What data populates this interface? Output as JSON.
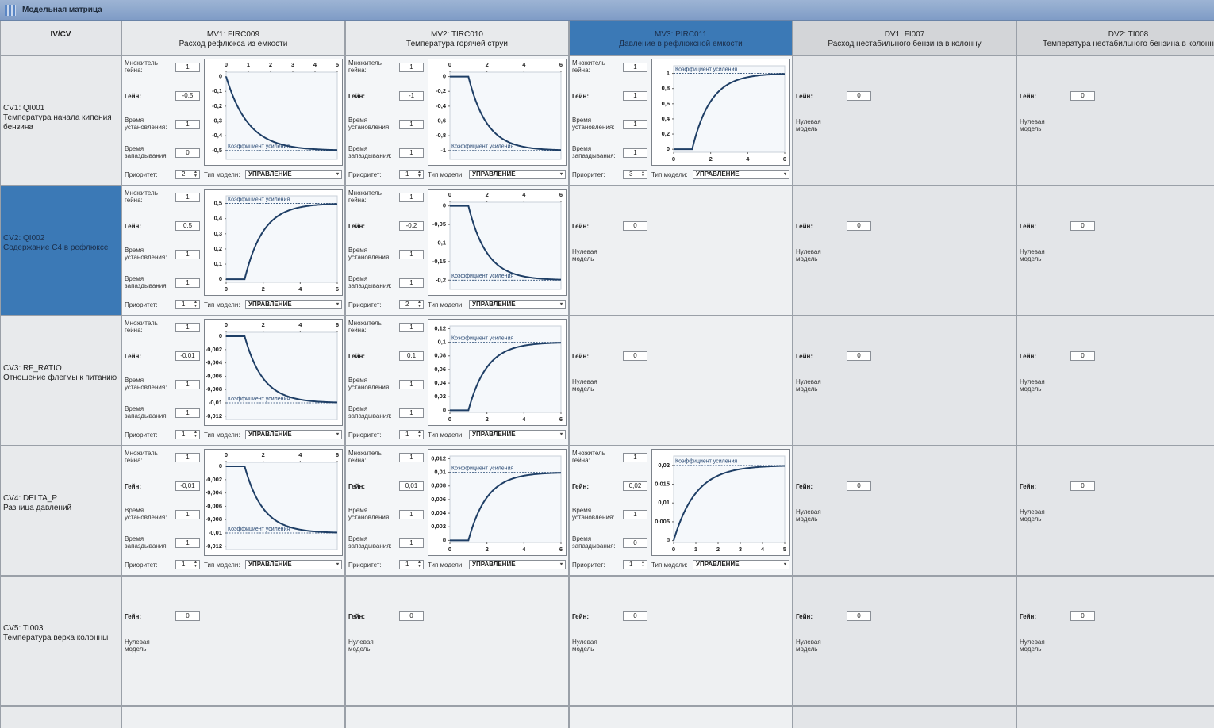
{
  "header": {
    "title": "Модельная матрица"
  },
  "labels": {
    "corner": "IV/CV",
    "multiplier": "Множитель гейна:",
    "gain": "Гейн:",
    "settle": "Время установления:",
    "delay": "Время запаздывания:",
    "priority": "Приоритет:",
    "model_type": "Тип модели:",
    "zero_model": "Нулевая модель",
    "gain_coef": "Коэффициент усиления"
  },
  "columns": [
    {
      "name": "MV1: FIRC009",
      "description": "Расход рефлюкса из емкости"
    },
    {
      "name": "MV2: TIRC010",
      "description": "Температура горячей струи"
    },
    {
      "name": "MV3: PIRC011",
      "description": "Давление в рефлюксной емкости",
      "selected": true
    },
    {
      "name": "DV1: FI007",
      "description": "Расход нестабильного бензина в колонну"
    },
    {
      "name": "DV2: TI008",
      "description": "Температура нестабильного бензина в колонн"
    }
  ],
  "rows": [
    {
      "name": "CV1: QI001",
      "description": "Температура начала кипения бензина",
      "cells": [
        {
          "multiplier": 1,
          "gain": {
            "value": -0.5,
            "label": "-0,5"
          },
          "settle_time": 1,
          "delay": 0,
          "priority": 2,
          "model_type": "УПРАВЛЕНИЕ",
          "chart": {
            "type": "line",
            "xaxis": "top",
            "xlim": [
              0,
              5
            ],
            "xticks": [
              0,
              1,
              2,
              3,
              4,
              5
            ],
            "ylim": [
              -0.56,
              0.03
            ],
            "yticks": [
              0,
              {
                "value": -0.1,
                "label": "-0,1"
              },
              {
                "value": -0.2,
                "label": "-0,2"
              },
              {
                "value": -0.3,
                "label": "-0,3"
              },
              {
                "value": -0.4,
                "label": "-0,4"
              },
              {
                "value": -0.5,
                "label": "-0,5"
              }
            ]
          }
        },
        {
          "multiplier": 1,
          "gain": -1,
          "settle_time": 1,
          "delay": 1,
          "priority": 1,
          "model_type": "УПРАВЛЕНИЕ",
          "chart": {
            "type": "line",
            "xaxis": "top",
            "xlim": [
              0,
              6
            ],
            "xticks": [
              0,
              2,
              4,
              6
            ],
            "ylim": [
              -1.12,
              0.06
            ],
            "yticks": [
              0,
              {
                "value": -0.2,
                "label": "-0,2"
              },
              {
                "value": -0.4,
                "label": "-0,4"
              },
              {
                "value": -0.6,
                "label": "-0,6"
              },
              {
                "value": -0.8,
                "label": "-0,8"
              },
              -1
            ]
          }
        },
        {
          "multiplier": 1,
          "gain": 1,
          "settle_time": 1,
          "delay": 1,
          "priority": 3,
          "model_type": "УПРАВЛЕНИЕ",
          "chart": {
            "type": "line",
            "xaxis": "bottom",
            "xlim": [
              0,
              6
            ],
            "xticks": [
              0,
              2,
              4,
              6
            ],
            "ylim": [
              -0.04,
              1.1
            ],
            "yticks": [
              0,
              {
                "value": 0.2,
                "label": "0,2"
              },
              {
                "value": 0.4,
                "label": "0,4"
              },
              {
                "value": 0.6,
                "label": "0,6"
              },
              {
                "value": 0.8,
                "label": "0,8"
              },
              1
            ]
          }
        },
        {
          "gain": 0
        },
        {
          "gain": 0
        }
      ]
    },
    {
      "name": "CV2: QI002",
      "description": "Содержание С4 в рефлюксе",
      "selected": true,
      "cells": [
        {
          "multiplier": 1,
          "gain": {
            "value": 0.5,
            "label": "0,5"
          },
          "settle_time": 1,
          "delay": 1,
          "priority": 1,
          "model_type": "УПРАВЛЕНИЕ",
          "chart": {
            "type": "line",
            "xaxis": "bottom",
            "xlim": [
              0,
              6
            ],
            "xticks": [
              0,
              2,
              4,
              6
            ],
            "ylim": [
              -0.02,
              0.55
            ],
            "yticks": [
              0,
              {
                "value": 0.1,
                "label": "0,1"
              },
              {
                "value": 0.2,
                "label": "0,2"
              },
              {
                "value": 0.3,
                "label": "0,3"
              },
              {
                "value": 0.4,
                "label": "0,4"
              },
              {
                "value": 0.5,
                "label": "0,5"
              }
            ]
          }
        },
        {
          "multiplier": 1,
          "gain": {
            "value": -0.2,
            "label": "-0,2"
          },
          "settle_time": 1,
          "delay": 1,
          "priority": 2,
          "model_type": "УПРАВЛЕНИЕ",
          "chart": {
            "type": "line",
            "xaxis": "top",
            "xlim": [
              0,
              6
            ],
            "xticks": [
              0,
              2,
              4,
              6
            ],
            "ylim": [
              -0.225,
              0.01
            ],
            "yticks": [
              0,
              {
                "value": -0.05,
                "label": "-0,05"
              },
              {
                "value": -0.1,
                "label": "-0,1"
              },
              {
                "value": -0.15,
                "label": "-0,15"
              },
              {
                "value": -0.2,
                "label": "-0,2"
              }
            ]
          }
        },
        {
          "gain": 0
        },
        {
          "gain": 0
        },
        {
          "gain": 0
        }
      ]
    },
    {
      "name": "CV3: RF_RATIO",
      "description": "Отношение флегмы к питанию",
      "cells": [
        {
          "multiplier": 1,
          "gain": {
            "value": -0.01,
            "label": "-0,01"
          },
          "settle_time": 1,
          "delay": 1,
          "priority": 1,
          "model_type": "УПРАВЛЕНИЕ",
          "chart": {
            "type": "line",
            "xaxis": "top",
            "xlim": [
              0,
              6
            ],
            "xticks": [
              0,
              2,
              4,
              6
            ],
            "ylim": [
              -0.0125,
              0.0006
            ],
            "yticks": [
              0,
              {
                "value": -0.002,
                "label": "-0,002"
              },
              {
                "value": -0.004,
                "label": "-0,004"
              },
              {
                "value": -0.006,
                "label": "-0,006"
              },
              {
                "value": -0.008,
                "label": "-0,008"
              },
              {
                "value": -0.01,
                "label": "-0,01"
              },
              {
                "value": -0.012,
                "label": "-0,012"
              }
            ]
          }
        },
        {
          "multiplier": 1,
          "gain": {
            "value": 0.1,
            "label": "0,1"
          },
          "settle_time": 1,
          "delay": 1,
          "priority": 1,
          "model_type": "УПРАВЛЕНИЕ",
          "chart": {
            "type": "line",
            "xaxis": "bottom",
            "xlim": [
              0,
              6
            ],
            "xticks": [
              0,
              2,
              4,
              6
            ],
            "ylim": [
              -0.003,
              0.124
            ],
            "yticks": [
              0,
              {
                "value": 0.02,
                "label": "0,02"
              },
              {
                "value": 0.04,
                "label": "0,04"
              },
              {
                "value": 0.06,
                "label": "0,06"
              },
              {
                "value": 0.08,
                "label": "0,08"
              },
              {
                "value": 0.1,
                "label": "0,1"
              },
              {
                "value": 0.12,
                "label": "0,12"
              }
            ]
          }
        },
        {
          "gain": 0
        },
        {
          "gain": 0
        },
        {
          "gain": 0
        }
      ]
    },
    {
      "name": "CV4: DELTA_P",
      "description": "Разница давлений",
      "cells": [
        {
          "multiplier": 1,
          "gain": {
            "value": -0.01,
            "label": "-0,01"
          },
          "settle_time": 1,
          "delay": 1,
          "priority": 1,
          "model_type": "УПРАВЛЕНИЕ",
          "chart": {
            "type": "line",
            "xaxis": "top",
            "xlim": [
              0,
              6
            ],
            "xticks": [
              0,
              2,
              4,
              6
            ],
            "ylim": [
              -0.0125,
              0.0006
            ],
            "yticks": [
              0,
              {
                "value": -0.002,
                "label": "-0,002"
              },
              {
                "value": -0.004,
                "label": "-0,004"
              },
              {
                "value": -0.006,
                "label": "-0,006"
              },
              {
                "value": -0.008,
                "label": "-0,008"
              },
              {
                "value": -0.01,
                "label": "-0,01"
              },
              {
                "value": -0.012,
                "label": "-0,012"
              }
            ]
          }
        },
        {
          "multiplier": 1,
          "gain": {
            "value": 0.01,
            "label": "0,01"
          },
          "settle_time": 1,
          "delay": 1,
          "priority": 1,
          "model_type": "УПРАВЛЕНИЕ",
          "chart": {
            "type": "line",
            "xaxis": "bottom",
            "xlim": [
              0,
              6
            ],
            "xticks": [
              0,
              2,
              4,
              6
            ],
            "ylim": [
              -0.0003,
              0.0124
            ],
            "yticks": [
              0,
              {
                "value": 0.002,
                "label": "0,002"
              },
              {
                "value": 0.004,
                "label": "0,004"
              },
              {
                "value": 0.006,
                "label": "0,006"
              },
              {
                "value": 0.008,
                "label": "0,008"
              },
              {
                "value": 0.01,
                "label": "0,01"
              },
              {
                "value": 0.012,
                "label": "0,012"
              }
            ]
          }
        },
        {
          "multiplier": 1,
          "gain": {
            "value": 0.02,
            "label": "0,02"
          },
          "settle_time": 1,
          "delay": 0,
          "priority": 1,
          "model_type": "УПРАВЛЕНИЕ",
          "chart": {
            "type": "line",
            "xaxis": "bottom",
            "xlim": [
              0,
              5
            ],
            "xticks": [
              0,
              1,
              2,
              3,
              4,
              5
            ],
            "ylim": [
              -0.0005,
              0.0225
            ],
            "yticks": [
              0,
              {
                "value": 0.005,
                "label": "0,005"
              },
              {
                "value": 0.01,
                "label": "0,01"
              },
              {
                "value": 0.015,
                "label": "0,015"
              },
              {
                "value": 0.02,
                "label": "0,02"
              }
            ]
          }
        },
        {
          "gain": 0
        },
        {
          "gain": 0
        }
      ]
    },
    {
      "name": "CV5: TI003",
      "description": "Температура верха колонны",
      "cells": [
        {
          "gain": 0
        },
        {
          "gain": 0
        },
        {
          "gain": 0
        },
        {
          "gain": 0
        },
        {
          "gain": 0
        }
      ]
    }
  ]
}
